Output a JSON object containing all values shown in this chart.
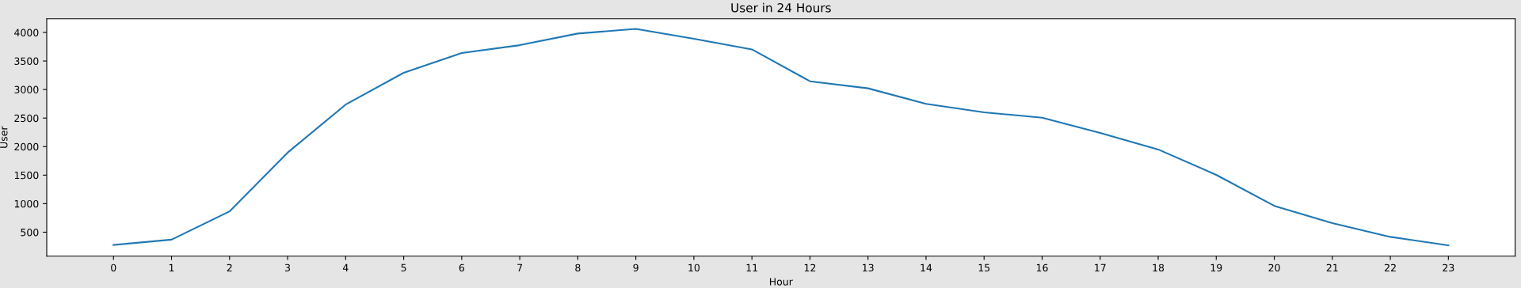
{
  "chart_data": {
    "type": "line",
    "title": "User in 24 Hours",
    "xlabel": "Hour",
    "ylabel": "User",
    "x": [
      0,
      1,
      2,
      3,
      4,
      5,
      6,
      7,
      8,
      9,
      10,
      11,
      12,
      13,
      14,
      15,
      16,
      17,
      18,
      19,
      20,
      21,
      22,
      23
    ],
    "series": [
      {
        "color": "#1f77b4",
        "values": [
          277,
          370,
          865,
          1894,
          2736,
          3294,
          3641,
          3777,
          3981,
          4062,
          3888,
          3703,
          3145,
          3021,
          2749,
          2600,
          2507,
          2241,
          1950,
          1505,
          962,
          659,
          418,
          269
        ]
      }
    ],
    "xlim": [
      -1.15,
      24.15
    ],
    "xticks": [
      0,
      1,
      2,
      3,
      4,
      5,
      6,
      7,
      8,
      9,
      10,
      11,
      12,
      13,
      14,
      15,
      16,
      17,
      18,
      19,
      20,
      21,
      22,
      23
    ],
    "ylim": [
      81,
      4240
    ],
    "yticks": [
      500,
      1000,
      1500,
      2000,
      2500,
      3000,
      3500,
      4000
    ],
    "grid": false,
    "legend": false,
    "marker": "none",
    "line_style": "solid"
  }
}
